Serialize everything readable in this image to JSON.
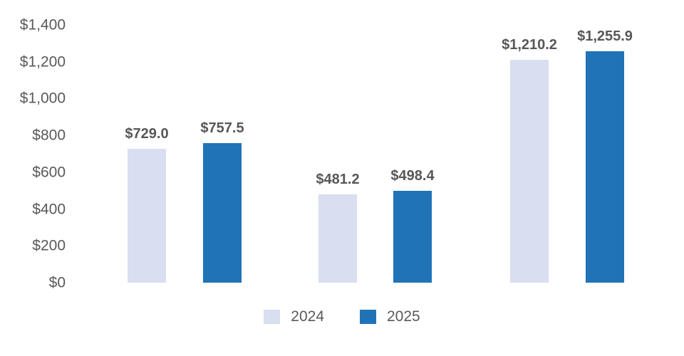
{
  "chart_data": {
    "type": "bar",
    "title": "",
    "xlabel": "",
    "ylabel": "",
    "categories": [
      "",
      "",
      ""
    ],
    "series": [
      {
        "name": "2024",
        "color": "#d9def0",
        "values": [
          729.0,
          481.2,
          1210.2
        ],
        "labels": [
          "$729.0",
          "$481.2",
          "$1,210.2"
        ]
      },
      {
        "name": "2025",
        "color": "#2073b7",
        "values": [
          757.5,
          498.4,
          1255.9
        ],
        "labels": [
          "$757.5",
          "$498.4",
          "$1,255.9"
        ]
      }
    ],
    "y_ticks": [
      "$1,400",
      "$1,200",
      "$1,000",
      "$800",
      "$600",
      "$400",
      "$200",
      "$0"
    ],
    "ylim": [
      0,
      1400
    ],
    "grid": false,
    "axis_lines": false,
    "legend_position": "bottom"
  },
  "legend": {
    "items": [
      {
        "label": "2024",
        "color": "#d9def0"
      },
      {
        "label": "2025",
        "color": "#2073b7"
      }
    ]
  },
  "colors": {
    "bar_2024": "#d9def0",
    "bar_2025": "#2073b7",
    "axis_text": "#595959",
    "data_label_text": "#575757",
    "background": "#ffffff"
  }
}
